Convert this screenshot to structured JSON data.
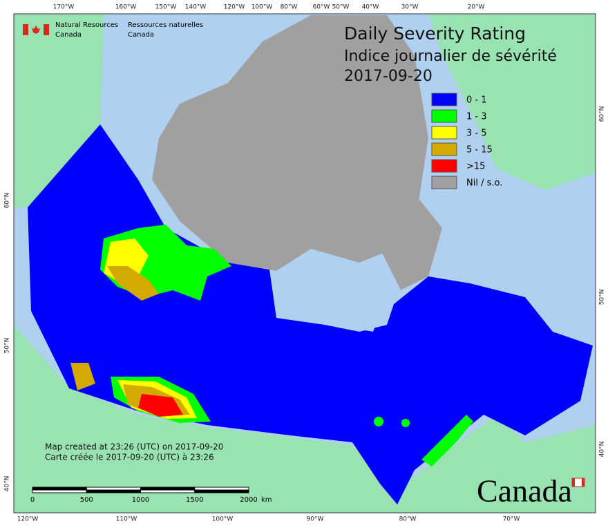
{
  "header": {
    "agency_en": [
      "Natural Resources",
      "Canada"
    ],
    "agency_fr": [
      "Ressources naturelles",
      "Canada"
    ]
  },
  "title": [
    "Daily Severity Rating",
    "Indice journalier de sévérité",
    "2017-09-20"
  ],
  "legend": [
    {
      "label": "0 - 1",
      "color": "#0000ff"
    },
    {
      "label": "1 - 3",
      "color": "#00ff00"
    },
    {
      "label": "3 - 5",
      "color": "#ffff00"
    },
    {
      "label": "5 - 15",
      "color": "#d4aa00"
    },
    {
      "label": ">15",
      "color": "#ff0000"
    },
    {
      "label": "Nil / s.o.",
      "color": "#a0a0a0"
    }
  ],
  "graticule": {
    "top": [
      "170°W",
      "160°W",
      "150°W",
      "140°W",
      "120°W",
      "100°W",
      "80°W",
      "60°W",
      "50°W",
      "40°W",
      "30°W",
      "20°W"
    ],
    "bottom": [
      "120°W",
      "110°W",
      "100°W",
      "90°W",
      "80°W",
      "70°W"
    ],
    "left": [
      "60°N",
      "50°N",
      "40°N"
    ],
    "right": [
      "60°N",
      "50°N",
      "40°N"
    ]
  },
  "footer": [
    "Map created at 23:26 (UTC) on 2017-09-20",
    "Carte créée le 2017-09-20 (UTC) à 23:26"
  ],
  "scale_bar": {
    "ticks": [
      "0",
      "500",
      "1000",
      "1500",
      "2000"
    ],
    "unit": "km"
  },
  "wordmark": "Canada"
}
